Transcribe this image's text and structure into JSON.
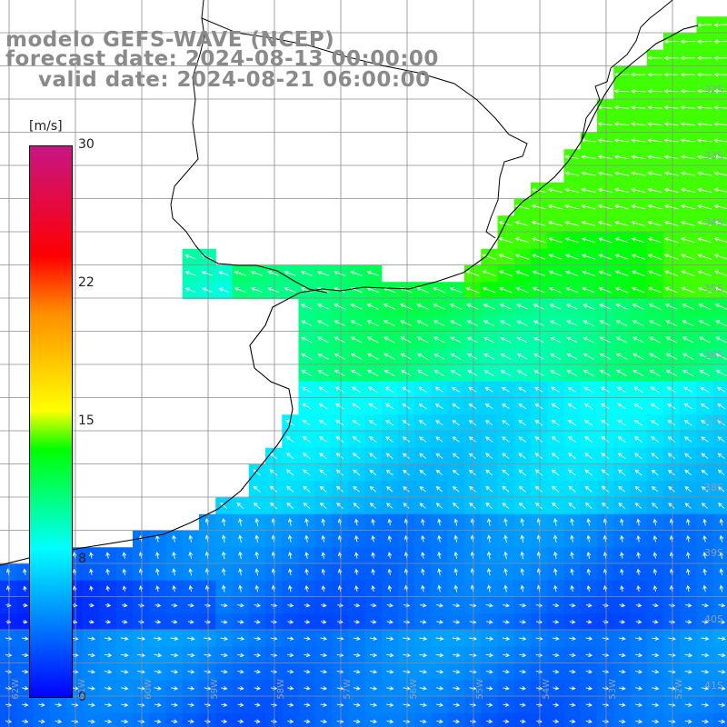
{
  "title": {
    "line1": "modelo GEFS-WAVE (NCEP)",
    "line2": "forecast date: 2024-08-13 00:00:00",
    "line3": "valid date: 2024-08-21 06:00:00"
  },
  "colorbar": {
    "unit": "[m/s]",
    "min": 0,
    "max": 30,
    "ticks": [
      "30",
      "22",
      "15",
      "8",
      "0"
    ],
    "tick_values": [
      30,
      22,
      15,
      8,
      0
    ],
    "stops": [
      "#0000ff",
      "#00ffff",
      "#00ff00",
      "#ffff00",
      "#ff8c00",
      "#ff0000",
      "#c71585"
    ]
  },
  "lat_labels": [
    "32S",
    "33S",
    "34S",
    "35S",
    "36S",
    "37S",
    "38S",
    "39S",
    "40S",
    "41S"
  ],
  "lon_labels": [
    "62W",
    "61W",
    "60W",
    "59W",
    "58W",
    "57W",
    "56W",
    "55W",
    "54W",
    "53W",
    "52W"
  ],
  "colors": {
    "land": "#ffffff",
    "grid": "#8c8c8c",
    "coast": "#000000",
    "arrow": "#ffffff"
  }
}
